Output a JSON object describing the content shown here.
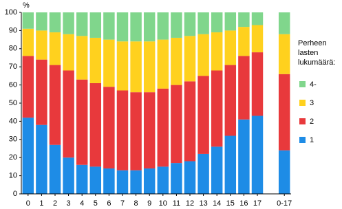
{
  "chart_data": {
    "type": "stacked-bar",
    "y_label": "%",
    "categories": [
      "0",
      "1",
      "2",
      "3",
      "4",
      "5",
      "6",
      "7",
      "8",
      "9",
      "10",
      "11",
      "12",
      "13",
      "14",
      "15",
      "16",
      "17",
      null,
      "0-17"
    ],
    "series": [
      {
        "name": "1",
        "color": "#1e8ce6",
        "values": [
          42,
          38,
          27,
          20,
          16,
          15,
          14,
          13,
          13,
          14,
          15,
          17,
          18,
          22,
          26,
          32,
          41,
          43,
          null,
          24
        ]
      },
      {
        "name": "2",
        "color": "#e8393c",
        "values": [
          34,
          36,
          44,
          48,
          47,
          46,
          45,
          44,
          43,
          42,
          43,
          43,
          44,
          43,
          42,
          39,
          35,
          35,
          null,
          42
        ]
      },
      {
        "name": "3",
        "color": "#ffd11e",
        "values": [
          15,
          16,
          18,
          20,
          24,
          25,
          26,
          27,
          28,
          28,
          27,
          26,
          25,
          23,
          21,
          19,
          16,
          15,
          null,
          22
        ]
      },
      {
        "name": "4-",
        "color": "#80d68c",
        "values": [
          9,
          10,
          11,
          12,
          13,
          14,
          15,
          16,
          16,
          16,
          15,
          14,
          13,
          12,
          11,
          10,
          8,
          7,
          null,
          12
        ]
      }
    ],
    "legend_title": "Perheen lasten lukumäärä:",
    "ylim": [
      0,
      100
    ],
    "yticks": [
      0,
      10,
      20,
      30,
      40,
      50,
      60,
      70,
      80,
      90,
      100
    ],
    "grid": false
  }
}
